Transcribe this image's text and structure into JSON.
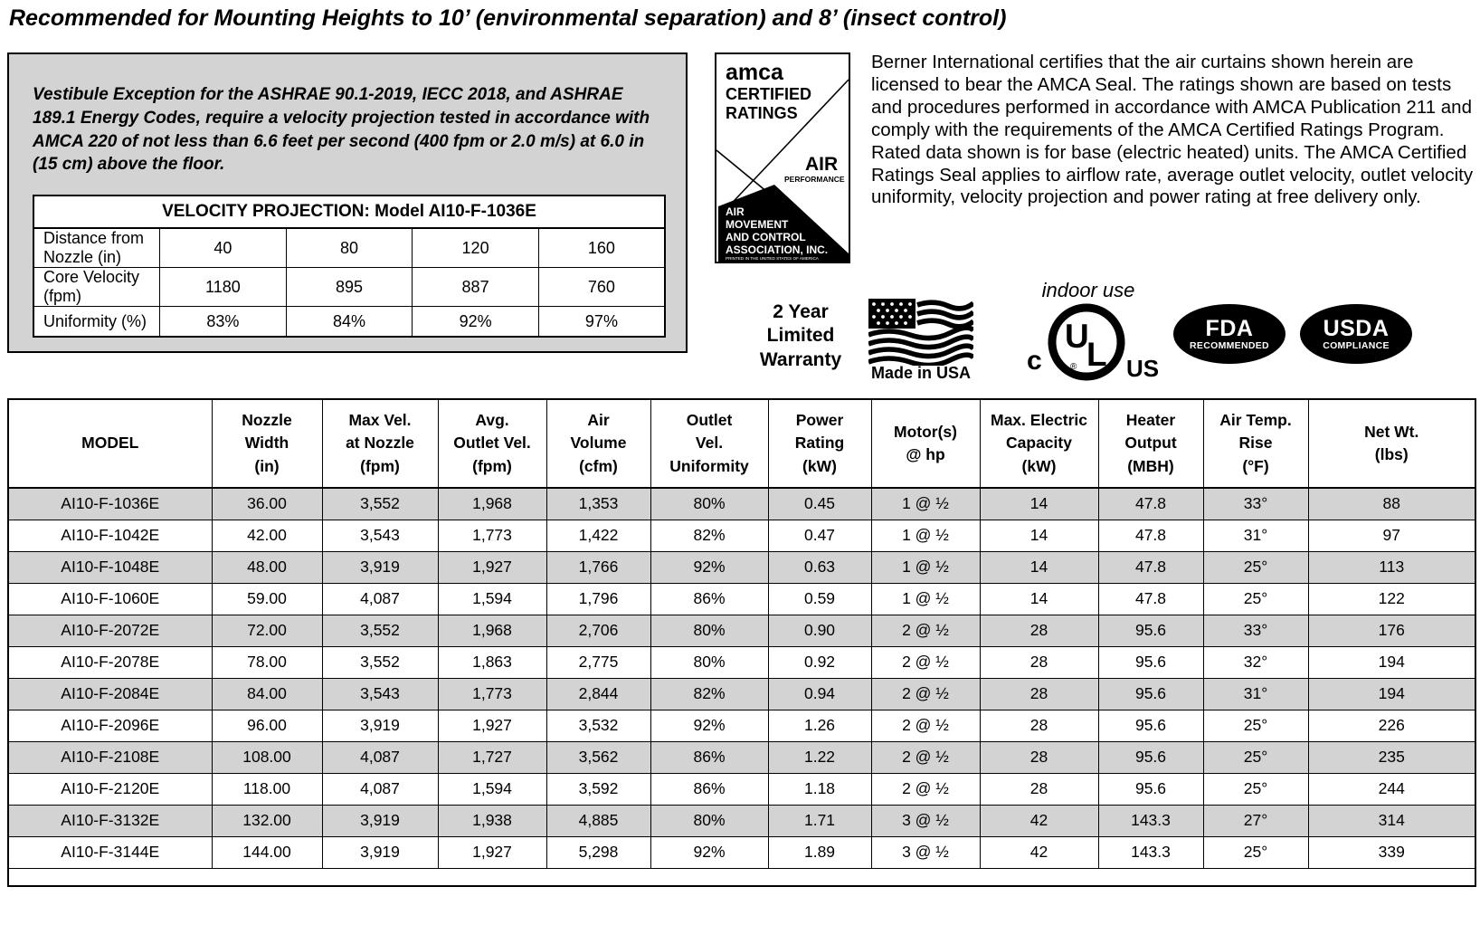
{
  "page": {
    "title": "Recommended for Mounting Heights to 10’ (environmental separation) and 8’ (insect control)"
  },
  "colors": {
    "stripe_gray": "#d3d3d3",
    "box_gray": "#d3d3d3",
    "ink": "#000000"
  },
  "vestibule_box": {
    "paragraph": "Vestibule Exception for the ASHRAE 90.1-2019, IECC 2018, and ASHRAE 189.1 Energy Codes, require a velocity projection tested in accordance with AMCA 220 of not less than 6.6 feet per second (400 fpm or 2.0 m/s) at 6.0 in (15 cm) above the floor.",
    "table": {
      "title": "VELOCITY PROJECTION: Model AI10-F-1036E",
      "rows": [
        {
          "label": "Distance from Nozzle (in)",
          "values": [
            "40",
            "80",
            "120",
            "160"
          ]
        },
        {
          "label": "Core Velocity (fpm)",
          "values": [
            "1180",
            "895",
            "887",
            "760"
          ]
        },
        {
          "label": "Uniformity (%)",
          "values": [
            "83%",
            "84%",
            "92%",
            "97%"
          ]
        }
      ]
    }
  },
  "amca_seal": {
    "brand": "amca",
    "line2": "CERTIFIED",
    "line3": "RATINGS",
    "air": "AIR",
    "performance": "PERFORMANCE",
    "b1": "AIR",
    "b2": "MOVEMENT",
    "b3": "AND CONTROL",
    "b4": "ASSOCIATION, INC.",
    "fine_print": "PRINTED IN THE UNITED STATES OF AMERICA"
  },
  "certification": {
    "paragraph": "Berner International certifies that the air curtains shown herein are licensed to bear the AMCA Seal.  The ratings shown are based on tests and procedures performed in accordance with AMCA Publication 211 and comply with the requirements of the AMCA Certified Ratings Program. Rated data shown is for base (electric heated) units.  The AMCA Certified Ratings Seal applies to airflow rate, average outlet velocity, outlet velocity uniformity, velocity projection and power rating  at free delivery only."
  },
  "badges": {
    "warranty": "2 Year\nLimited\nWarranty",
    "made_in_usa": "Made in USA",
    "indoor_use": "indoor use",
    "ul": {
      "left": "c",
      "u": "U",
      "l": "L",
      "reg": "®",
      "right": "US"
    },
    "fda": {
      "line1": "FDA",
      "line2": "RECOMMENDED"
    },
    "usda": {
      "line1": "USDA",
      "line2": "COMPLIANCE"
    }
  },
  "spec_table": {
    "headers": [
      "MODEL",
      "Nozzle\nWidth\n(in)",
      "Max Vel.\nat Nozzle\n(fpm)",
      "Avg.\nOutlet Vel.\n(fpm)",
      "Air\nVolume\n(cfm)",
      "Outlet\nVel.\nUniformity",
      "Power\nRating\n(kW)",
      "Motor(s)\n@ hp",
      "Max. Electric\nCapacity\n(kW)",
      "Heater\nOutput\n(MBH)",
      "Air Temp.\nRise\n(°F)",
      "Net Wt.\n(lbs)"
    ],
    "rows": [
      [
        "AI10-F-1036E",
        "36.00",
        "3,552",
        "1,968",
        "1,353",
        "80%",
        "0.45",
        "1 @ ½",
        "14",
        "47.8",
        "33°",
        "88"
      ],
      [
        "AI10-F-1042E",
        "42.00",
        "3,543",
        "1,773",
        "1,422",
        "82%",
        "0.47",
        "1 @ ½",
        "14",
        "47.8",
        "31°",
        "97"
      ],
      [
        "AI10-F-1048E",
        "48.00",
        "3,919",
        "1,927",
        "1,766",
        "92%",
        "0.63",
        "1 @ ½",
        "14",
        "47.8",
        "25°",
        "113"
      ],
      [
        "AI10-F-1060E",
        "59.00",
        "4,087",
        "1,594",
        "1,796",
        "86%",
        "0.59",
        "1 @ ½",
        "14",
        "47.8",
        "25°",
        "122"
      ],
      [
        "AI10-F-2072E",
        "72.00",
        "3,552",
        "1,968",
        "2,706",
        "80%",
        "0.90",
        "2 @ ½",
        "28",
        "95.6",
        "33°",
        "176"
      ],
      [
        "AI10-F-2078E",
        "78.00",
        "3,552",
        "1,863",
        "2,775",
        "80%",
        "0.92",
        "2 @ ½",
        "28",
        "95.6",
        "32°",
        "194"
      ],
      [
        "AI10-F-2084E",
        "84.00",
        "3,543",
        "1,773",
        "2,844",
        "82%",
        "0.94",
        "2 @ ½",
        "28",
        "95.6",
        "31°",
        "194"
      ],
      [
        "AI10-F-2096E",
        "96.00",
        "3,919",
        "1,927",
        "3,532",
        "92%",
        "1.26",
        "2 @ ½",
        "28",
        "95.6",
        "25°",
        "226"
      ],
      [
        "AI10-F-2108E",
        "108.00",
        "4,087",
        "1,727",
        "3,562",
        "86%",
        "1.22",
        "2 @ ½",
        "28",
        "95.6",
        "25°",
        "235"
      ],
      [
        "AI10-F-2120E",
        "118.00",
        "4,087",
        "1,594",
        "3,592",
        "86%",
        "1.18",
        "2 @ ½",
        "28",
        "95.6",
        "25°",
        "244"
      ],
      [
        "AI10-F-3132E",
        "132.00",
        "3,919",
        "1,938",
        "4,885",
        "80%",
        "1.71",
        "3 @ ½",
        "42",
        "143.3",
        "27°",
        "314"
      ],
      [
        "AI10-F-3144E",
        "144.00",
        "3,919",
        "1,927",
        "5,298",
        "92%",
        "1.89",
        "3 @ ½",
        "42",
        "143.3",
        "25°",
        "339"
      ]
    ]
  }
}
